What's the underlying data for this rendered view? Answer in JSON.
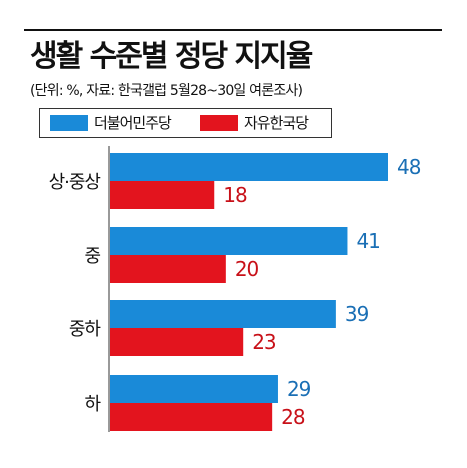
{
  "chart_data": {
    "type": "bar",
    "orientation": "horizontal",
    "title": "생활 수준별 정당 지지율",
    "subtitle": "(단위: %, 자료: 한국갤럽 5월28~30일 여론조사)",
    "categories": [
      "상·중상",
      "중",
      "중하",
      "하"
    ],
    "series": [
      {
        "name": "더불어민주당",
        "color": "#1a8ad8",
        "label_color": "#1a6fb5",
        "values": [
          48,
          41,
          39,
          29
        ]
      },
      {
        "name": "자유한국당",
        "color": "#e3141e",
        "label_color": "#c81018",
        "values": [
          18,
          20,
          23,
          28
        ]
      }
    ],
    "xlim": [
      0,
      48
    ],
    "legend_position": "top-left",
    "grid": false
  }
}
